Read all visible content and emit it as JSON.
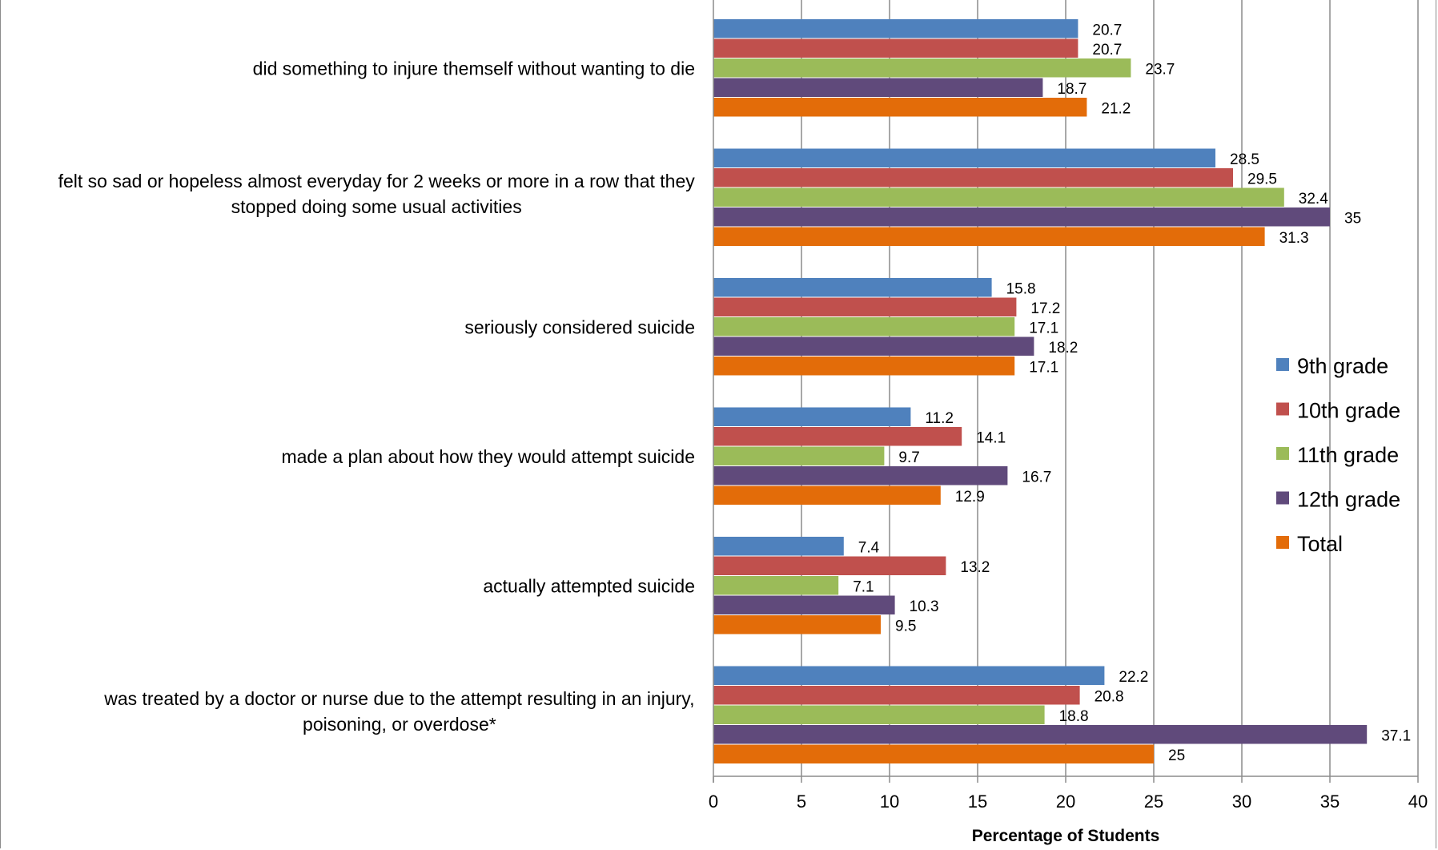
{
  "chart_data": {
    "type": "bar",
    "orientation": "horizontal",
    "xlabel": "Percentage of Students",
    "xlim": [
      0,
      40
    ],
    "xticks": [
      0,
      5,
      10,
      15,
      20,
      25,
      30,
      35,
      40
    ],
    "grid": "vertical",
    "legend_position": "right",
    "categories": [
      "did something to injure themself without wanting to die",
      "felt so sad or hopeless almost everyday for 2 weeks or more in a row that they stopped doing some usual activities",
      "seriously considered suicide",
      "made a plan about how they would attempt suicide",
      "actually attempted suicide",
      "was treated by a doctor or nurse due to the attempt resulting in an injury, poisoning, or overdose*"
    ],
    "category_lines": [
      [
        "did something to injure themself without wanting to die"
      ],
      [
        "felt so sad or hopeless almost everyday for 2 weeks or more in a row that they",
        "stopped doing some usual activities"
      ],
      [
        "seriously considered suicide"
      ],
      [
        "made a plan about how they would attempt suicide"
      ],
      [
        "actually attempted suicide"
      ],
      [
        "was treated by a doctor or nurse due to the attempt resulting in an injury,",
        "poisoning, or overdose*"
      ]
    ],
    "series": [
      {
        "name": "9th grade",
        "color": "#4f81bd",
        "values": [
          20.7,
          28.5,
          15.8,
          11.2,
          7.4,
          22.2
        ]
      },
      {
        "name": "10th grade",
        "color": "#c0504d",
        "values": [
          20.7,
          29.5,
          17.2,
          14.1,
          13.2,
          20.8
        ]
      },
      {
        "name": "11th grade",
        "color": "#9bbb59",
        "values": [
          23.7,
          32.4,
          17.1,
          9.7,
          7.1,
          18.8
        ]
      },
      {
        "name": "12th grade",
        "color": "#604a7b",
        "values": [
          18.7,
          35,
          18.2,
          16.7,
          10.3,
          37.1
        ]
      },
      {
        "name": "Total",
        "color": "#e36c09",
        "values": [
          21.2,
          31.3,
          17.1,
          12.9,
          9.5,
          25
        ]
      }
    ]
  }
}
